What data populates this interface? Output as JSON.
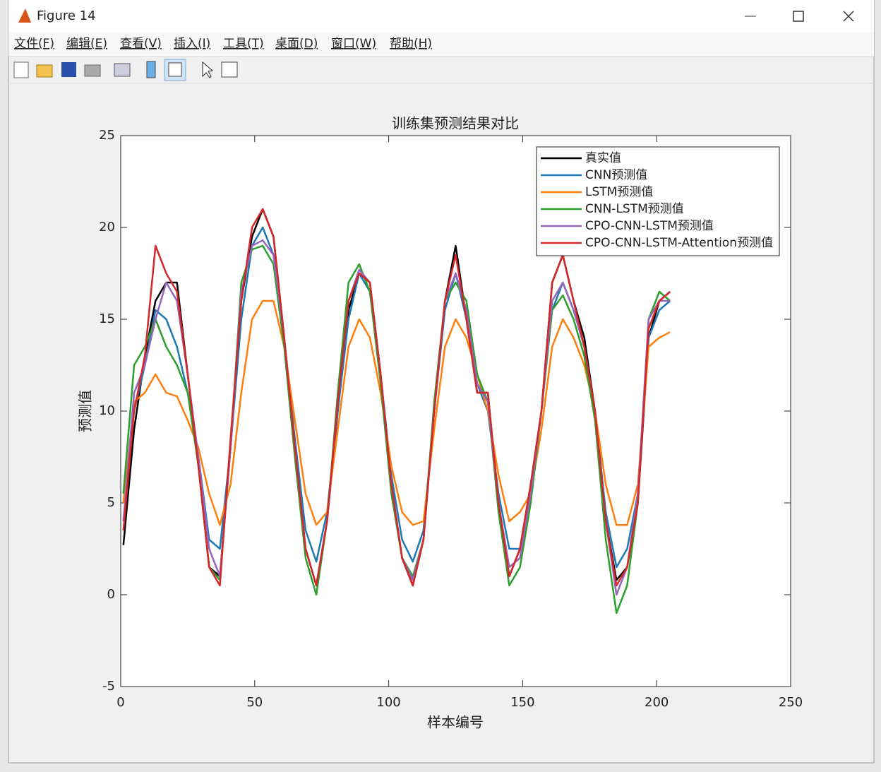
{
  "window": {
    "title": "Figure 14",
    "menu": [
      "文件(F)",
      "编辑(E)",
      "查看(V)",
      "插入(I)",
      "工具(T)",
      "桌面(D)",
      "窗口(W)",
      "帮助(H)"
    ]
  },
  "chart_data": {
    "type": "line",
    "title": "训练集预测结果对比",
    "xlabel": "样本编号",
    "ylabel": "预测值",
    "xlim": [
      0,
      250
    ],
    "xticks": [
      0,
      50,
      100,
      150,
      200,
      250
    ],
    "ylim": [
      -5,
      25
    ],
    "yticks": [
      -5,
      0,
      5,
      10,
      15,
      20,
      25
    ],
    "grid": false,
    "legend": "upper right",
    "x": [
      1,
      5,
      9,
      13,
      17,
      21,
      25,
      29,
      33,
      37,
      41,
      45,
      49,
      53,
      57,
      61,
      65,
      69,
      73,
      77,
      81,
      85,
      89,
      93,
      97,
      101,
      105,
      109,
      113,
      117,
      121,
      125,
      129,
      133,
      137,
      141,
      145,
      149,
      153,
      157,
      161,
      165,
      169,
      173,
      177,
      181,
      185,
      189,
      193,
      197,
      201,
      205
    ],
    "series": [
      {
        "name": "真实值",
        "color": "#000000",
        "values": [
          2.7,
          9,
          13,
          16,
          17,
          17,
          12,
          7,
          1.5,
          1,
          8,
          16,
          19.5,
          21,
          19.5,
          14,
          8,
          2.5,
          0.5,
          4,
          10,
          15.5,
          17.5,
          17,
          12,
          6,
          2,
          0.5,
          3,
          10,
          16,
          19,
          15,
          11,
          11,
          5,
          1,
          2.5,
          6,
          10,
          17,
          18.5,
          16,
          14,
          10,
          4,
          0.8,
          1.5,
          5,
          14,
          16,
          16.5
        ]
      },
      {
        "name": "CNN预测值",
        "color": "#1f77b4",
        "values": [
          5,
          10,
          12.5,
          15.5,
          15,
          13.5,
          11,
          7.5,
          3,
          2.5,
          8,
          15,
          19,
          20,
          18.5,
          14,
          8.5,
          3.5,
          1.8,
          4.5,
          10,
          15,
          17.5,
          16.5,
          12,
          6.5,
          3,
          1.8,
          3.5,
          10,
          15.5,
          17.5,
          15,
          11.5,
          10,
          5.5,
          2.5,
          2.5,
          5.5,
          10,
          15.5,
          17,
          15.5,
          13.5,
          10,
          4.5,
          1.5,
          2.5,
          5.5,
          14,
          15.5,
          16
        ]
      },
      {
        "name": "LSTM预测值",
        "color": "#ff7f0e",
        "values": [
          5,
          10.5,
          11,
          12,
          11,
          10.8,
          9.5,
          8,
          5.5,
          3.8,
          6,
          11,
          15,
          16,
          16,
          13.5,
          9.5,
          5.5,
          3.8,
          4.5,
          9,
          13.5,
          15,
          14,
          11,
          7,
          4.5,
          3.8,
          4,
          9,
          13.5,
          15,
          14,
          12,
          10,
          6.5,
          4,
          4.5,
          5.5,
          9,
          13.5,
          15,
          14,
          12.5,
          10,
          6,
          3.8,
          3.8,
          6,
          13.5,
          14,
          14.3
        ]
      },
      {
        "name": "CNN-LSTM预测值",
        "color": "#2ca02c",
        "values": [
          5.5,
          12.5,
          13.5,
          15,
          13.5,
          12.5,
          11,
          7,
          1.5,
          0.8,
          8,
          17,
          18.8,
          19,
          18,
          13.5,
          7.5,
          2,
          0,
          4,
          11,
          17,
          18,
          16.5,
          11.5,
          5.5,
          2,
          1,
          3,
          10.5,
          16,
          17,
          16,
          12,
          10.5,
          4.5,
          0.5,
          1.5,
          5,
          10,
          15.5,
          16.3,
          15,
          13,
          9.5,
          3,
          -1,
          0.5,
          5,
          15,
          16.5,
          16
        ]
      },
      {
        "name": "CPO-CNN-LSTM预测值",
        "color": "#9467bd",
        "values": [
          4,
          11,
          12.5,
          15,
          17,
          16,
          12,
          7.5,
          2.5,
          1,
          8,
          16.5,
          19,
          19.3,
          18.5,
          14,
          8,
          2.5,
          0.5,
          4,
          10.5,
          16,
          17.7,
          17,
          12,
          6,
          2,
          0.8,
          3,
          10,
          16,
          17.5,
          15.5,
          11.5,
          10.5,
          5,
          1.5,
          2,
          5.5,
          10,
          16,
          17,
          15.5,
          13.5,
          10,
          4,
          0,
          1.5,
          5.5,
          15,
          16,
          16
        ]
      },
      {
        "name": "CPO-CNN-LSTM-Attention预测值",
        "color": "#d62728",
        "values": [
          3.5,
          10,
          13,
          19,
          17.5,
          16.5,
          12,
          7,
          1.5,
          0.5,
          8.5,
          16,
          20,
          21,
          19.5,
          14,
          8,
          2.5,
          0.5,
          4,
          10.5,
          16,
          17.5,
          17,
          12,
          6,
          2,
          0.5,
          3,
          10,
          16,
          18.5,
          15,
          11,
          11,
          5,
          1,
          2.5,
          6,
          10,
          17,
          18.5,
          16,
          13.5,
          10,
          4,
          0.5,
          1.5,
          5,
          14.5,
          16,
          16.5
        ]
      }
    ]
  }
}
